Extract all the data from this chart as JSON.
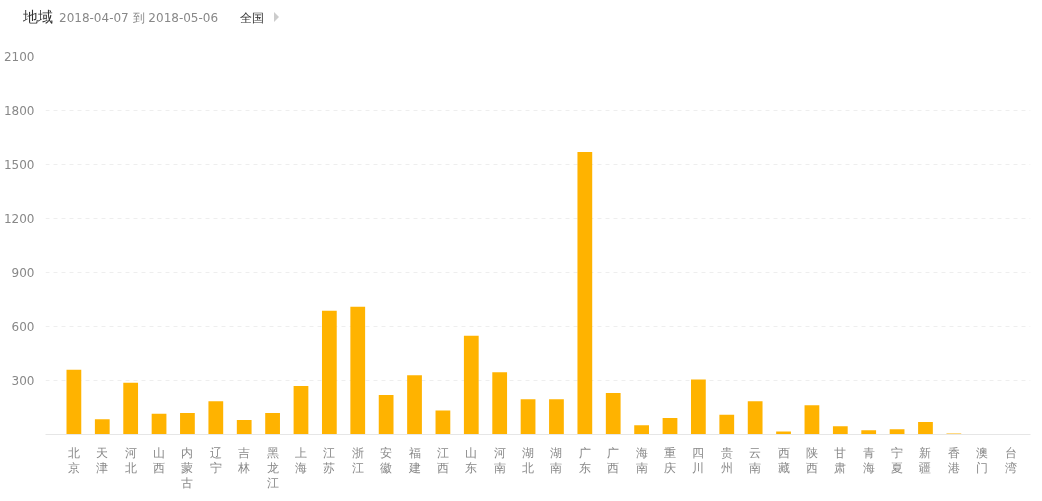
{
  "chart_data": {
    "type": "bar",
    "title": "地域",
    "subtitle": "2018-04-07 到 2018-05-06",
    "annotations": [
      "全国"
    ],
    "categories": [
      "北京",
      "天津",
      "河北",
      "山西",
      "内蒙古",
      "辽宁",
      "吉林",
      "黑龙江",
      "上海",
      "江苏",
      "浙江",
      "安徽",
      "福建",
      "江西",
      "山东",
      "河南",
      "湖北",
      "湖南",
      "广东",
      "广西",
      "海南",
      "重庆",
      "四川",
      "贵州",
      "云南",
      "西藏",
      "陕西",
      "甘肃",
      "青海",
      "宁夏",
      "新疆",
      "香港",
      "澳门",
      "台湾"
    ],
    "values": [
      360,
      85,
      288,
      115,
      120,
      185,
      81,
      120,
      270,
      687,
      710,
      219,
      329,
      133,
      548,
      346,
      196,
      196,
      1570,
      231,
      52,
      92,
      306,
      110,
      185,
      17,
      162,
      46,
      23,
      29,
      69,
      6,
      0,
      0
    ],
    "color": "#ffb300",
    "ylim": [
      0,
      2100
    ],
    "yticks": [
      {
        "value": 0,
        "label": null
      },
      300,
      600,
      900,
      1200,
      1500,
      1800,
      2100
    ],
    "grid": "y"
  }
}
